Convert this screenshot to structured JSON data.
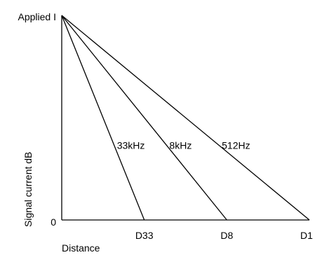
{
  "chart_data": {
    "type": "line",
    "title": "",
    "xlabel": "Distance",
    "ylabel": "Signal current dB",
    "y_ticks": [
      {
        "label": "0",
        "value": 0
      },
      {
        "label": "Applied I",
        "value": 1
      }
    ],
    "x_ticks": [
      {
        "label": "D33",
        "value": 1
      },
      {
        "label": "D8",
        "value": 2
      },
      {
        "label": "D1",
        "value": 3
      }
    ],
    "xlim": [
      0,
      3
    ],
    "ylim": [
      0,
      1
    ],
    "grid": false,
    "series": [
      {
        "name": "33kHz",
        "x": [
          0,
          1
        ],
        "y": [
          1,
          0
        ]
      },
      {
        "name": "8kHz",
        "x": [
          0,
          2
        ],
        "y": [
          1,
          0
        ]
      },
      {
        "name": "512Hz",
        "x": [
          0,
          3
        ],
        "y": [
          1,
          0
        ]
      }
    ]
  }
}
